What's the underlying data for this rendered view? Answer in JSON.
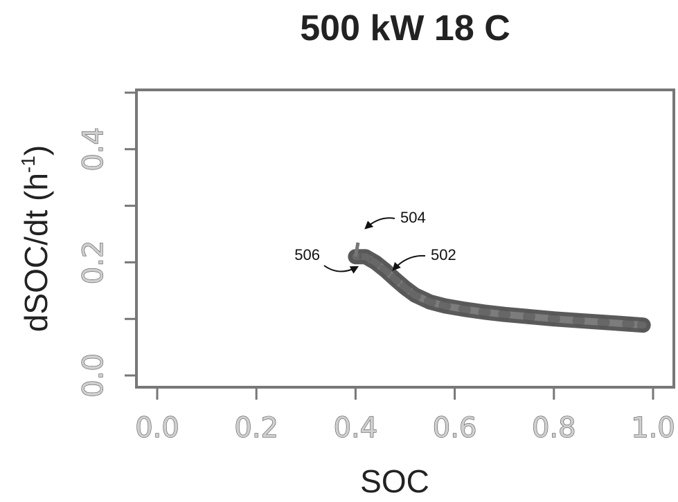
{
  "chart_data": {
    "type": "scatter",
    "title": "500  kW  18  C",
    "xlabel": "SOC",
    "ylabel": "dSOC/dt (h",
    "ylabel_sup": "-1",
    "ylabel_end": ")",
    "xlim": [
      0.0,
      1.0
    ],
    "ylim": [
      0.0,
      0.5
    ],
    "x_ticks": [
      "0.0",
      "0.2",
      "0.4",
      "0.6",
      "0.8",
      "1.0"
    ],
    "y_ticks": [
      "0.0",
      "0.2",
      "0.4"
    ],
    "grid": false,
    "series": [
      {
        "points": [
          [
            0.4,
            0.21
          ],
          [
            0.42,
            0.21
          ],
          [
            0.44,
            0.2
          ],
          [
            0.46,
            0.186
          ],
          [
            0.48,
            0.17
          ],
          [
            0.5,
            0.155
          ],
          [
            0.52,
            0.142
          ],
          [
            0.55,
            0.13
          ],
          [
            0.58,
            0.123
          ],
          [
            0.62,
            0.117
          ],
          [
            0.66,
            0.112
          ],
          [
            0.7,
            0.108
          ],
          [
            0.75,
            0.104
          ],
          [
            0.8,
            0.1
          ],
          [
            0.85,
            0.097
          ],
          [
            0.9,
            0.094
          ],
          [
            0.95,
            0.091
          ],
          [
            0.98,
            0.089
          ]
        ]
      }
    ],
    "annotations": [
      {
        "label": "504",
        "x": 0.41,
        "y": 0.235
      },
      {
        "label": "502",
        "x": 0.48,
        "y": 0.195
      },
      {
        "label": "506",
        "x": 0.4,
        "y": 0.19
      }
    ]
  }
}
